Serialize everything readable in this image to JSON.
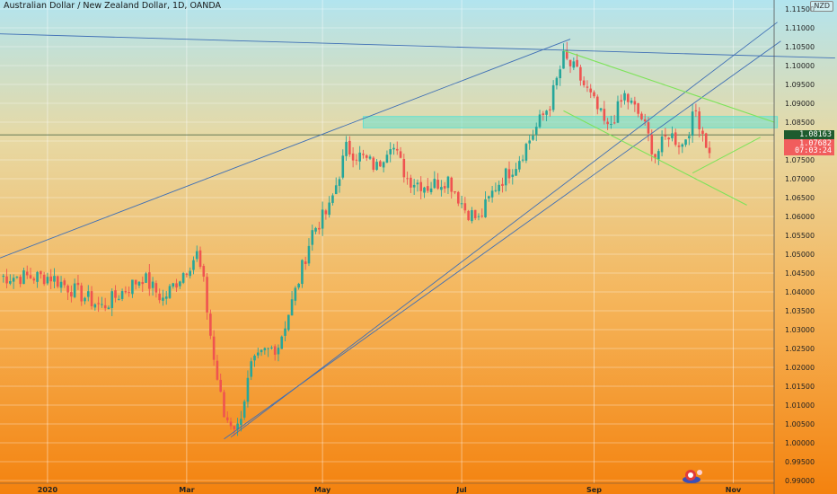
{
  "header": {
    "title": "Australian Dollar / New Zealand Dollar, 1D, OANDA",
    "currency": "NZD"
  },
  "price_tags": {
    "hline": "1.08163",
    "close": "1.07682",
    "timer": "07:03:24"
  },
  "colors": {
    "up_candle": "#26a69a",
    "down_candle": "#ef5350",
    "trendline": "#3f6fb5",
    "pattern_line": "#7ee35a",
    "zone": "#66e0d0",
    "horizontal_line": "#3a5a3a",
    "background_top": "#b2e4ef",
    "background_bottom": "#f4820e"
  },
  "chart_data": {
    "type": "candlestick",
    "title": "Australian Dollar / New Zealand Dollar, 1D, OANDA",
    "y_ticks": [
      "1.11500",
      "1.11000",
      "1.10500",
      "1.10000",
      "1.09500",
      "1.09000",
      "1.08500",
      "1.08000",
      "1.07500",
      "1.07000",
      "1.06500",
      "1.06000",
      "1.05500",
      "1.05000",
      "1.04500",
      "1.04000",
      "1.03500",
      "1.03000",
      "1.02500",
      "1.02000",
      "1.01500",
      "1.01000",
      "1.00500",
      "1.00000",
      "0.99500",
      "0.99000"
    ],
    "ylim": [
      0.99,
      1.115
    ],
    "x_ticks": [
      "2020",
      "Mar",
      "May",
      "Jul",
      "Sep",
      "Nov"
    ],
    "grid": true,
    "anchors": [
      {
        "day": 0,
        "close": 1.044
      },
      {
        "day": 15,
        "close": 1.044
      },
      {
        "day": 30,
        "close": 1.036
      },
      {
        "day": 42,
        "close": 1.044
      },
      {
        "day": 48,
        "close": 1.038
      },
      {
        "day": 58,
        "close": 1.05
      },
      {
        "day": 60,
        "close": 1.042
      },
      {
        "day": 63,
        "close": 1.022
      },
      {
        "day": 66,
        "close": 1.007
      },
      {
        "day": 70,
        "close": 1.004
      },
      {
        "day": 74,
        "close": 1.02
      },
      {
        "day": 78,
        "close": 1.024
      },
      {
        "day": 82,
        "close": 1.026
      },
      {
        "day": 87,
        "close": 1.04
      },
      {
        "day": 92,
        "close": 1.056
      },
      {
        "day": 97,
        "close": 1.062
      },
      {
        "day": 102,
        "close": 1.078
      },
      {
        "day": 106,
        "close": 1.076
      },
      {
        "day": 111,
        "close": 1.073
      },
      {
        "day": 115,
        "close": 1.08
      },
      {
        "day": 120,
        "close": 1.07
      },
      {
        "day": 126,
        "close": 1.068
      },
      {
        "day": 132,
        "close": 1.07
      },
      {
        "day": 137,
        "close": 1.062
      },
      {
        "day": 141,
        "close": 1.059
      },
      {
        "day": 146,
        "close": 1.068
      },
      {
        "day": 152,
        "close": 1.074
      },
      {
        "day": 157,
        "close": 1.082
      },
      {
        "day": 162,
        "close": 1.09
      },
      {
        "day": 166,
        "close": 1.102
      },
      {
        "day": 170,
        "close": 1.098
      },
      {
        "day": 175,
        "close": 1.09
      },
      {
        "day": 179,
        "close": 1.083
      },
      {
        "day": 184,
        "close": 1.092
      },
      {
        "day": 189,
        "close": 1.086
      },
      {
        "day": 193,
        "close": 1.076
      },
      {
        "day": 197,
        "close": 1.082
      },
      {
        "day": 201,
        "close": 1.079
      },
      {
        "day": 205,
        "close": 1.088
      },
      {
        "day": 209,
        "close": 1.0768
      }
    ],
    "trendlines": [
      {
        "name": "upper-channel",
        "from": {
          "day": 68,
          "price": 1.0015
        },
        "to": {
          "day": 229,
          "price": 1.1115
        }
      },
      {
        "name": "lower-channel",
        "from": {
          "day": 66,
          "price": 1.001
        },
        "to": {
          "day": 230,
          "price": 1.1065
        }
      },
      {
        "name": "long-resistance",
        "from": {
          "day": 0,
          "price": 1.049
        },
        "to": {
          "day": 168,
          "price": 1.107
        }
      },
      {
        "name": "top-line",
        "from": {
          "day": -61,
          "price": 1.11
        },
        "to": {
          "day": 246,
          "price": 1.102
        }
      },
      {
        "name": "flag-upper",
        "from": {
          "day": 166,
          "price": 1.104
        },
        "to": {
          "day": 228,
          "price": 1.085
        }
      },
      {
        "name": "flag-lower",
        "from": {
          "day": 166,
          "price": 1.088
        },
        "to": {
          "day": 220,
          "price": 1.063
        }
      },
      {
        "name": "flag-support",
        "from": {
          "day": 204,
          "price": 1.0715
        },
        "to": {
          "day": 224,
          "price": 1.081
        }
      }
    ],
    "zone": {
      "from_day": 107,
      "to_day": 229,
      "price_low": 1.0835,
      "price_high": 1.0865
    },
    "horizontal_line": 1.08163,
    "last_close": 1.07682
  }
}
